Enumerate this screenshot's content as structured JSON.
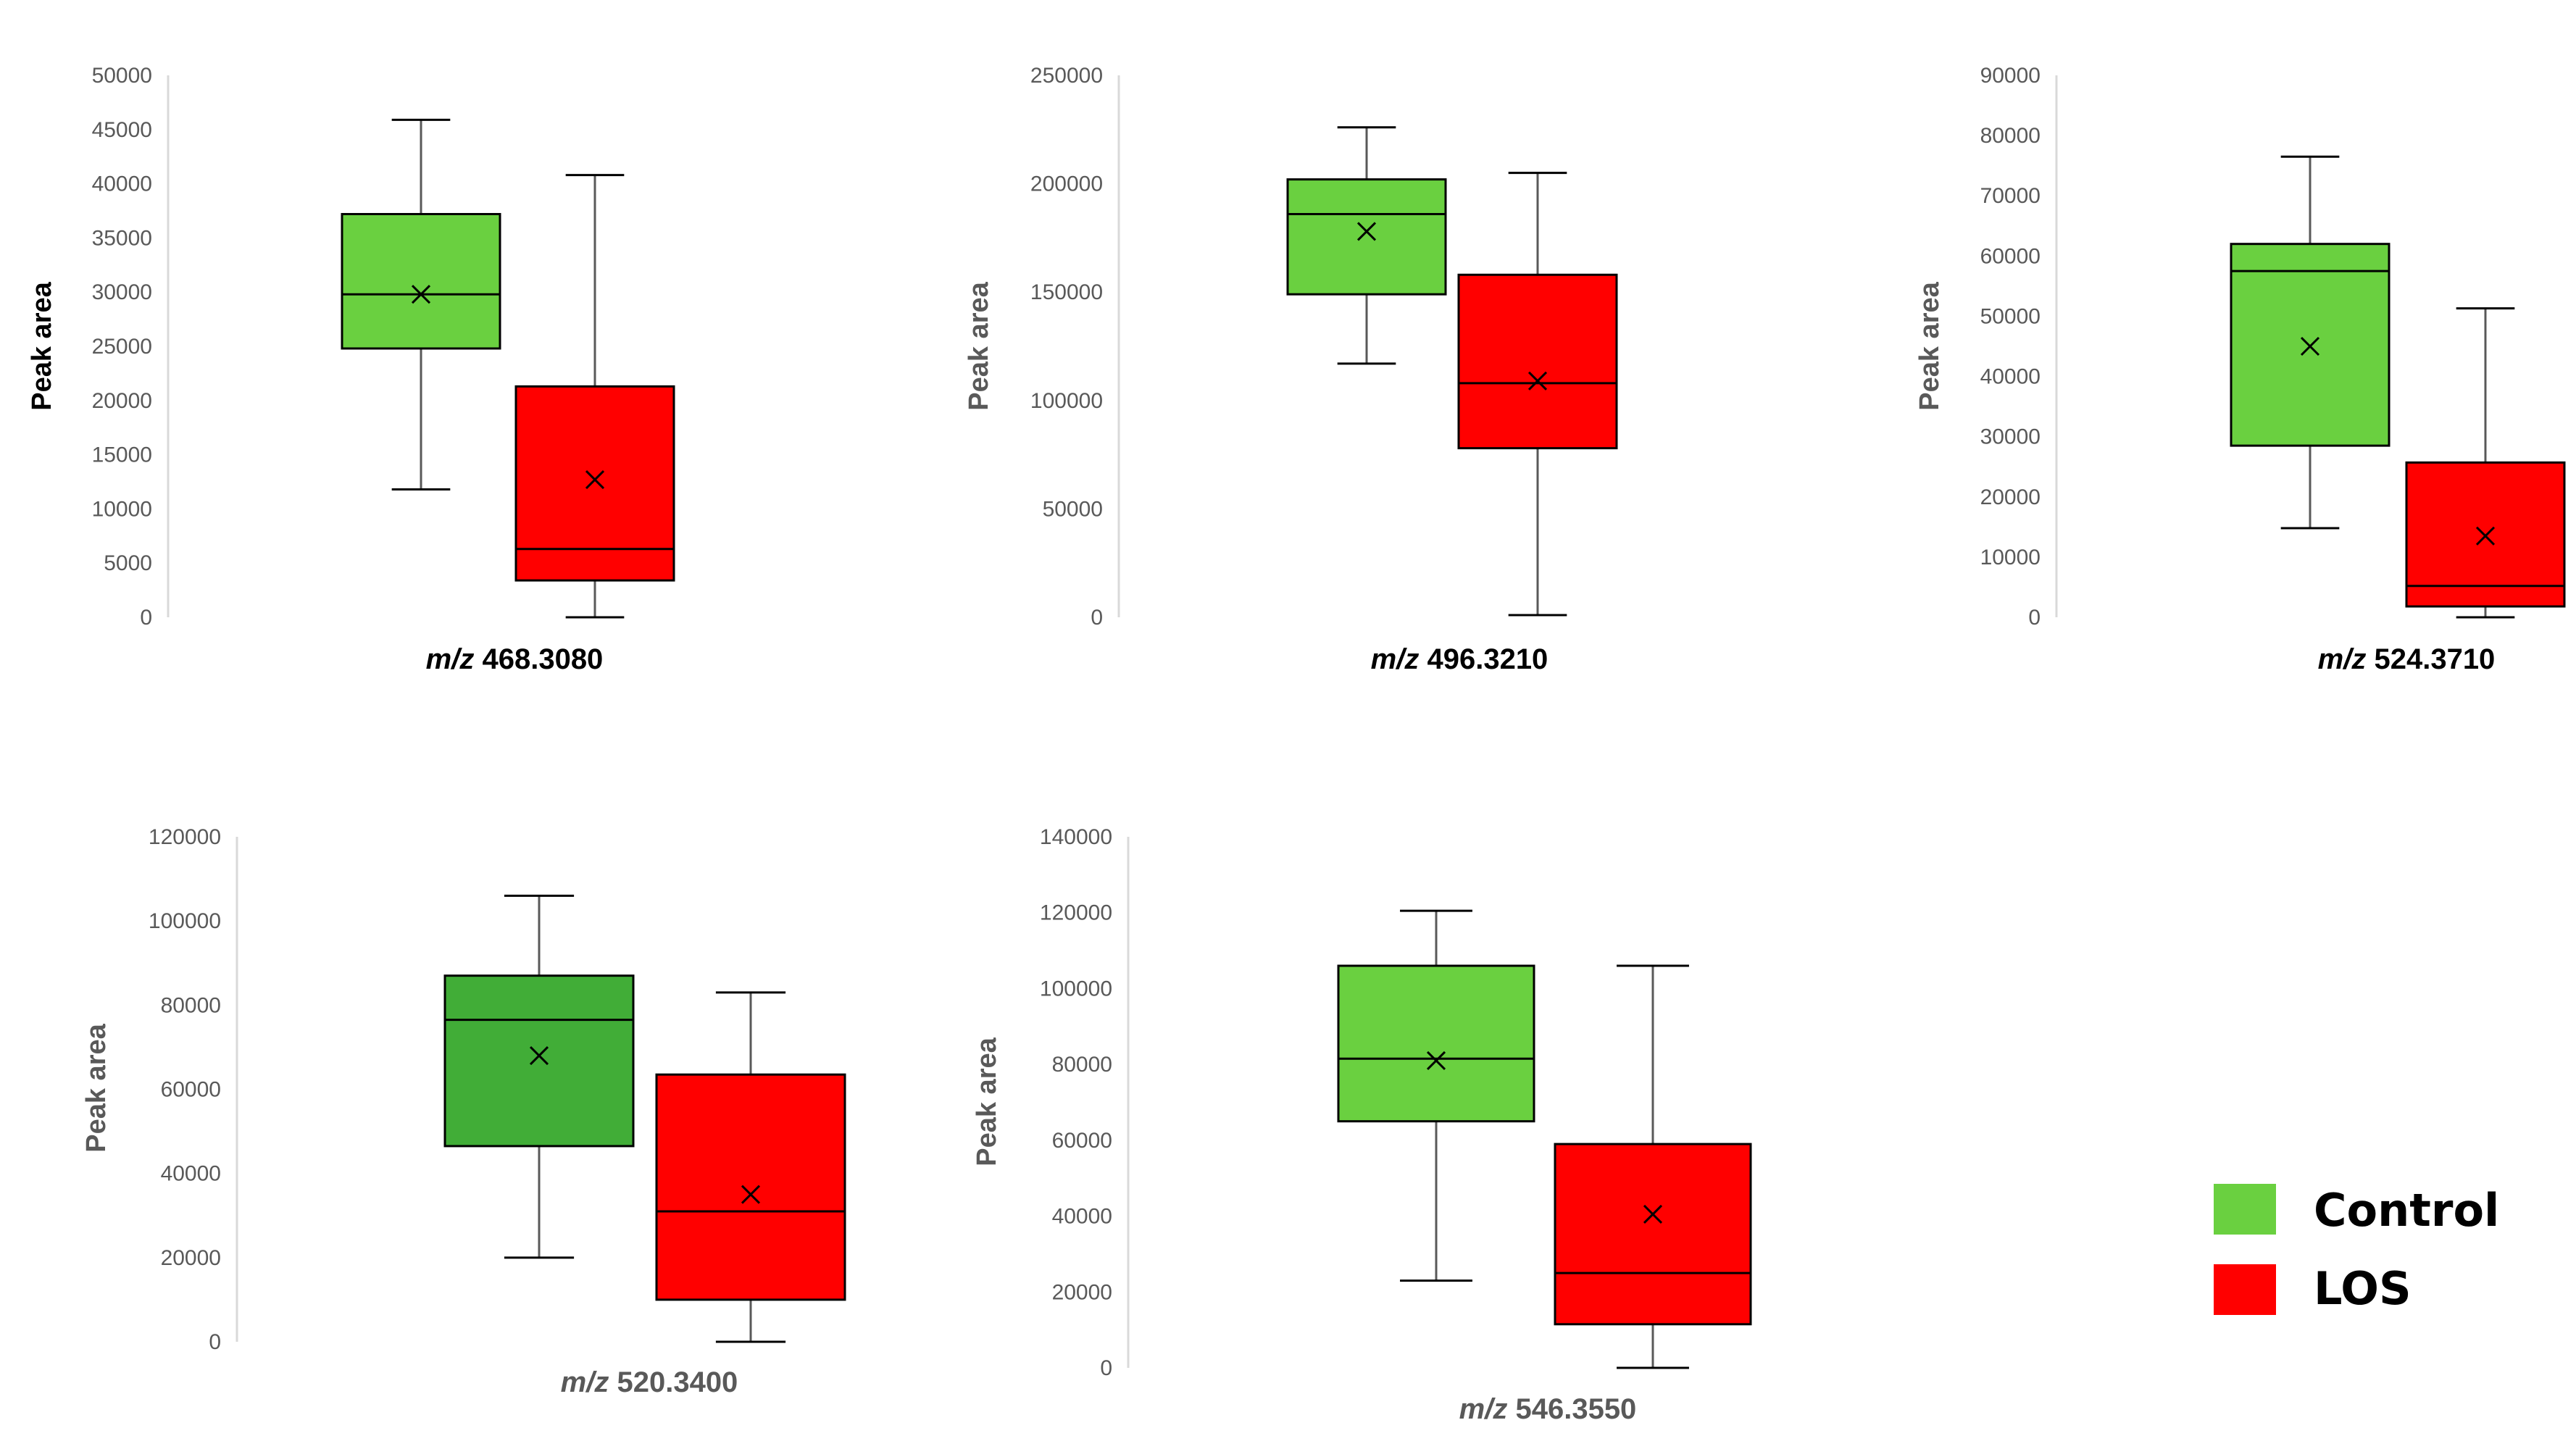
{
  "colors": {
    "control": "#6ad040",
    "control_dark": "#41ad37",
    "los": "#ff0000",
    "axis": "#d9d9d9",
    "stroke": "#000000",
    "whisker": "#595959"
  },
  "legend": {
    "items": [
      {
        "label": "Control",
        "color": "#6ad040"
      },
      {
        "label": "LOS",
        "color": "#ff0000"
      }
    ]
  },
  "chart_data": [
    {
      "type": "box",
      "title_prefix": "m/z",
      "title_value": "468.3080",
      "ylabel": "Peak area",
      "ylim": [
        0,
        50000
      ],
      "yticks": [
        "0",
        "5000",
        "10000",
        "15000",
        "20000",
        "25000",
        "30000",
        "35000",
        "40000",
        "45000",
        "50000"
      ],
      "series": [
        {
          "name": "Control",
          "min": 11800,
          "q1": 24800,
          "median": 29800,
          "q3": 37200,
          "max": 45900,
          "mean": 29800
        },
        {
          "name": "LOS",
          "min": 0,
          "q1": 3400,
          "median": 6300,
          "q3": 21300,
          "max": 40800,
          "mean": 12700
        }
      ]
    },
    {
      "type": "box",
      "title_prefix": "m/z",
      "title_value": "496.3210",
      "ylabel": "Peak area",
      "ylim": [
        0,
        250000
      ],
      "yticks": [
        "0",
        "50000",
        "100000",
        "150000",
        "200000",
        "250000"
      ],
      "series": [
        {
          "name": "Control",
          "min": 117000,
          "q1": 149000,
          "median": 186000,
          "q3": 202000,
          "max": 226000,
          "mean": 178000
        },
        {
          "name": "LOS",
          "min": 1000,
          "q1": 78000,
          "median": 108000,
          "q3": 158000,
          "max": 205000,
          "mean": 109000
        }
      ]
    },
    {
      "type": "box",
      "title_prefix": "m/z",
      "title_value": "524.3710",
      "ylabel": "Peak area",
      "ylim": [
        0,
        90000
      ],
      "yticks": [
        "0",
        "10000",
        "20000",
        "30000",
        "40000",
        "50000",
        "60000",
        "70000",
        "80000",
        "90000"
      ],
      "series": [
        {
          "name": "Control",
          "min": 14800,
          "q1": 28500,
          "median": 57500,
          "q3": 62000,
          "max": 76500,
          "mean": 45000
        },
        {
          "name": "LOS",
          "min": 0,
          "q1": 1800,
          "median": 5200,
          "q3": 25700,
          "max": 51300,
          "mean": 13500
        }
      ]
    },
    {
      "type": "box",
      "title_prefix": "m/z",
      "title_value": "520.3400",
      "ylabel": "Peak  area",
      "ylim": [
        0,
        120000
      ],
      "yticks": [
        "0",
        "20000",
        "40000",
        "60000",
        "80000",
        "100000",
        "120000"
      ],
      "series": [
        {
          "name": "Control",
          "min": 20000,
          "q1": 46500,
          "median": 76500,
          "q3": 87000,
          "max": 106000,
          "mean": 68000
        },
        {
          "name": "LOS",
          "min": 0,
          "q1": 10000,
          "median": 31000,
          "q3": 63500,
          "max": 83000,
          "mean": 35000
        }
      ]
    },
    {
      "type": "box",
      "title_prefix": "m/z",
      "title_value": "546.3550",
      "ylabel": "Peak area",
      "ylim": [
        0,
        140000
      ],
      "yticks": [
        "0",
        "20000",
        "40000",
        "60000",
        "80000",
        "100000",
        "120000",
        "140000"
      ],
      "series": [
        {
          "name": "Control",
          "min": 23000,
          "q1": 65000,
          "median": 81500,
          "q3": 106000,
          "max": 120500,
          "mean": 81000
        },
        {
          "name": "LOS",
          "min": 0,
          "q1": 11500,
          "median": 25000,
          "q3": 59000,
          "max": 106000,
          "mean": 40500
        }
      ]
    }
  ]
}
